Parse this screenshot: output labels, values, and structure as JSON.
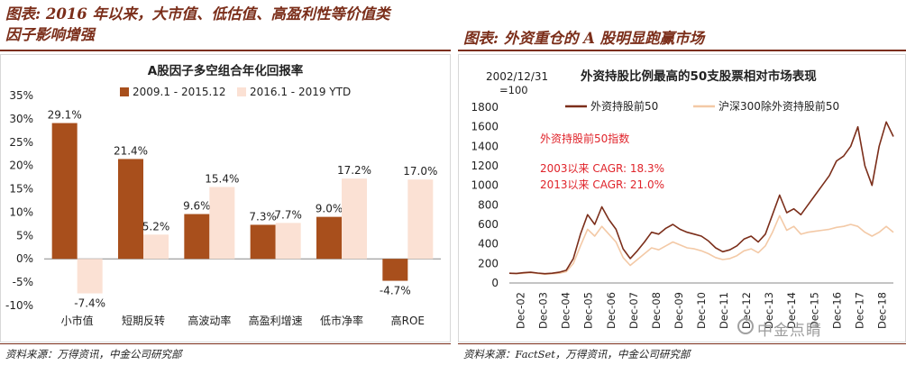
{
  "left": {
    "title_line1": "图表: 2016 年以来，大市值、低估值、高盈利性等价值类",
    "title_line2": "因子影响增强",
    "source": "资料来源：万得资讯，中金公司研究部"
  },
  "right": {
    "title": "图表: 外资重仓的 A 股明显跑赢市场",
    "source": "资料来源：FactSet，万得资讯，中金公司研究部",
    "watermark": "中金点睛"
  },
  "colors": {
    "dark": "#a84f1c",
    "light": "#fbe1d4",
    "brand": "#7b2e1a",
    "annot": "#e0242b",
    "line_light": "#f3c9a6"
  },
  "chart_data": [
    {
      "type": "bar",
      "title": "A股因子多空组合年化回报率",
      "categories": [
        "小市值",
        "短期反转",
        "高波动率",
        "高盈利增速",
        "低市净率",
        "高ROE"
      ],
      "series": [
        {
          "name": "2009.1 - 2015.12",
          "values": [
            29.1,
            21.4,
            9.6,
            7.3,
            9.0,
            -4.7
          ]
        },
        {
          "name": "2016.1 - 2019 YTD",
          "values": [
            -7.4,
            5.2,
            15.4,
            7.7,
            17.2,
            17.0
          ]
        }
      ],
      "data_labels": [
        [
          "29.1%",
          "21.4%",
          "9.6%",
          "7.3%",
          "9.0%",
          "-4.7%"
        ],
        [
          "-7.4%",
          "5.2%",
          "15.4%",
          "7.7%",
          "17.2%",
          "17.0%"
        ]
      ],
      "yticks": [
        "35%",
        "30%",
        "25%",
        "20%",
        "15%",
        "10%",
        "5%",
        "0%",
        "-5%",
        "-10%"
      ],
      "ylim": [
        -10,
        35
      ],
      "legend_position": "top",
      "grid": false
    },
    {
      "type": "line",
      "title": "外资持股比例最高的50支股票相对市场表现",
      "base_note_line1": "2002/12/31",
      "base_note_line2": "=100",
      "series": [
        {
          "name": "外资持股前50",
          "values": [
            100,
            98,
            105,
            110,
            102,
            95,
            100,
            110,
            130,
            250,
            500,
            700,
            600,
            780,
            650,
            550,
            350,
            250,
            330,
            420,
            520,
            500,
            560,
            600,
            550,
            520,
            500,
            480,
            430,
            360,
            320,
            340,
            380,
            450,
            480,
            420,
            500,
            700,
            900,
            720,
            760,
            700,
            800,
            900,
            1000,
            1100,
            1250,
            1300,
            1400,
            1600,
            1200,
            1000,
            1400,
            1650,
            1500
          ]
        },
        {
          "name": "沪深300除外资持股前50",
          "values": [
            100,
            95,
            100,
            105,
            98,
            90,
            95,
            100,
            115,
            200,
            380,
            550,
            480,
            580,
            500,
            420,
            260,
            180,
            240,
            300,
            360,
            340,
            380,
            420,
            390,
            360,
            350,
            330,
            300,
            260,
            240,
            250,
            280,
            330,
            350,
            310,
            380,
            520,
            690,
            540,
            580,
            500,
            520,
            530,
            540,
            550,
            570,
            580,
            600,
            580,
            520,
            480,
            520,
            580,
            520
          ]
        }
      ],
      "x_ticks": [
        "Dec-02",
        "Dec-03",
        "Dec-04",
        "Dec-05",
        "Dec-06",
        "Dec-07",
        "Dec-08",
        "Dec-09",
        "Dec-10",
        "Dec-11",
        "Dec-12",
        "Dec-13",
        "Dec-14",
        "Dec-15",
        "Dec-16",
        "Dec-17",
        "Dec-18"
      ],
      "yticks": [
        "0",
        "200",
        "400",
        "600",
        "800",
        "1000",
        "1200",
        "1400",
        "1600",
        "1800"
      ],
      "ylim": [
        0,
        1800
      ],
      "annotations": [
        "外资持股前50指数",
        "2003以来 CAGR: 18.3%",
        "2013以来 CAGR: 21.0%"
      ],
      "legend_position": "top",
      "grid": false
    }
  ]
}
